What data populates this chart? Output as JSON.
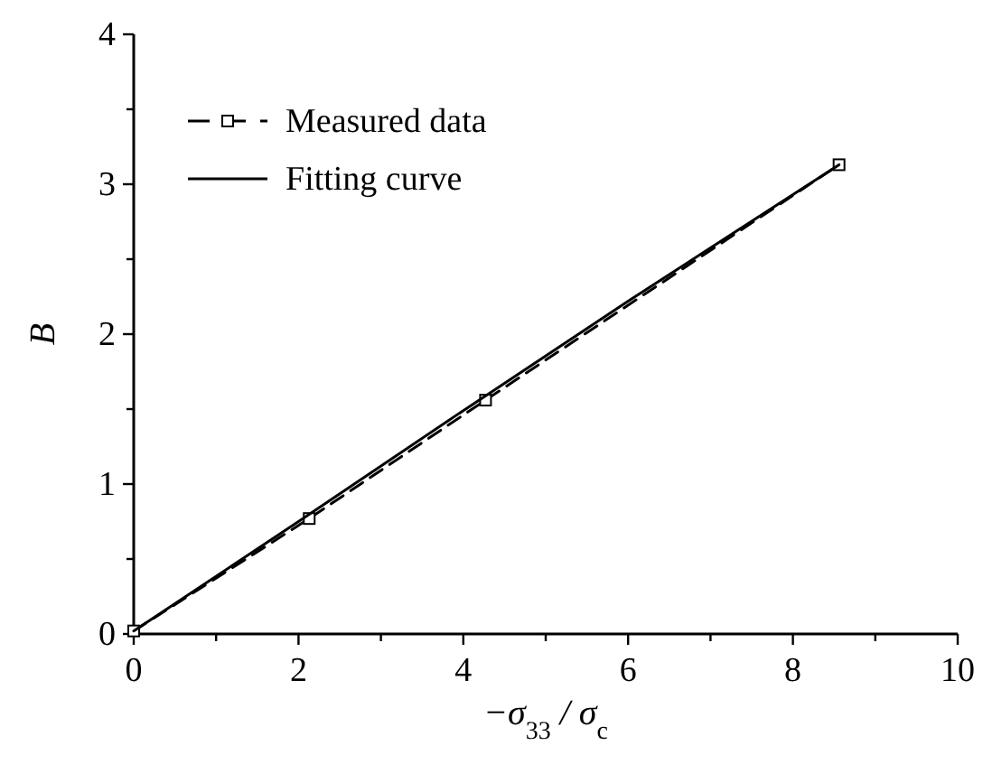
{
  "chart_data": {
    "type": "line",
    "xlabel": "−σ$_{33}$ / σ$_{c}$",
    "ylabel": "B",
    "xlim": [
      0,
      10
    ],
    "ylim": [
      0,
      4
    ],
    "xticks": [
      0,
      {
        "value": 1,
        "label": null
      },
      2,
      {
        "value": 3,
        "label": null
      },
      4,
      {
        "value": 5,
        "label": null
      },
      6,
      {
        "value": 7,
        "label": null
      },
      8,
      {
        "value": 9,
        "label": null
      },
      10
    ],
    "yticks": [
      0,
      {
        "value": 0.5,
        "label": null
      },
      1,
      {
        "value": 1.5,
        "label": null
      },
      2,
      {
        "value": 2.5,
        "label": null
      },
      3,
      {
        "value": 3.5,
        "label": null
      },
      4
    ],
    "grid": false,
    "legend": "top left",
    "series": [
      {
        "name": "Measured data",
        "color": "#000000",
        "marker": "square",
        "line_style": "dashed",
        "x": [
          0,
          2.13,
          4.27,
          8.56
        ],
        "values": [
          0.02,
          0.77,
          1.56,
          3.13
        ]
      },
      {
        "name": "Fitting curve",
        "color": "#000000",
        "marker": "none",
        "line_style": "solid",
        "x": [
          0,
          2,
          4,
          6,
          8.56
        ],
        "values": [
          0.02,
          0.75,
          1.49,
          2.22,
          3.13
        ]
      }
    ]
  }
}
